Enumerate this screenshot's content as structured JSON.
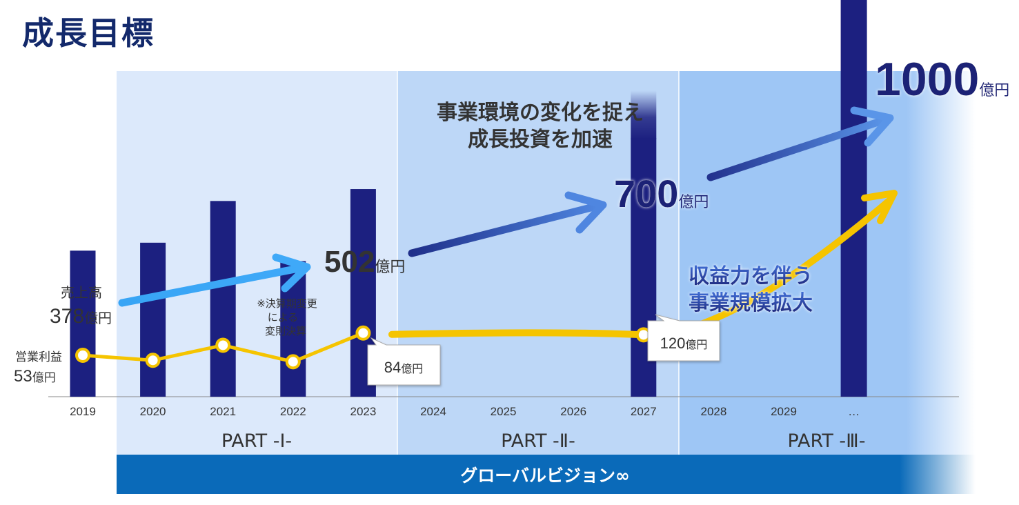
{
  "page": {
    "title": "成長目標"
  },
  "colors": {
    "title": "#13296b",
    "bar": "#1c2080",
    "profit_line": "#f5c400",
    "part1_bg": "#dce9fb",
    "part2_bg": "#bdd7f7",
    "part3_bg": "#9ec6f5",
    "banner": "#0a6ab9",
    "arrow_light": "#38a5f5",
    "arrow_dark": "#243a9e",
    "text_dark": "#333333",
    "text_navy": "#1c2276"
  },
  "chart_data": {
    "type": "bar",
    "title": "成長目標",
    "categories": [
      "2019",
      "2020",
      "2021",
      "2022",
      "2023",
      "2024",
      "2025",
      "2026",
      "2027",
      "2028",
      "2029",
      "…"
    ],
    "series": [
      {
        "name": "売上高",
        "unit": "億円",
        "values": [
          378,
          394,
          478,
          357,
          502,
          null,
          null,
          null,
          700,
          null,
          null,
          1000
        ]
      },
      {
        "name": "営業利益",
        "unit": "億円",
        "values": [
          53,
          46,
          67,
          44,
          84,
          null,
          null,
          null,
          120,
          null,
          null,
          null
        ]
      }
    ],
    "ylim": [
      0,
      1100
    ],
    "profit_scale": {
      "ref_value": 53,
      "anchor_value": 120
    },
    "labels": {
      "sales_2019_name": "売上高",
      "sales_2019_value": "378",
      "profit_2019_name": "営業利益",
      "profit_2019_value": "53",
      "sales_2023": "502",
      "sales_2027": "700",
      "sales_target": "1000",
      "profit_2023": "84",
      "profit_2027": "120",
      "unit": "億円",
      "note_2022": [
        "※決算期変更",
        "による",
        "変則決算"
      ]
    },
    "annotations": {
      "part2_message": [
        "事業環境の変化を捉え",
        "成長投資を加速"
      ],
      "part3_message": [
        "収益力を伴う",
        "事業規模拡大"
      ]
    },
    "phases": [
      {
        "label": "PART -Ⅰ-",
        "years": [
          "2019",
          "2023"
        ]
      },
      {
        "label": "PART -Ⅱ-",
        "years": [
          "2024",
          "2027"
        ]
      },
      {
        "label": "PART -Ⅲ-",
        "years": [
          "2028",
          "…"
        ]
      }
    ],
    "banner": "グローバルビジョン∞"
  }
}
